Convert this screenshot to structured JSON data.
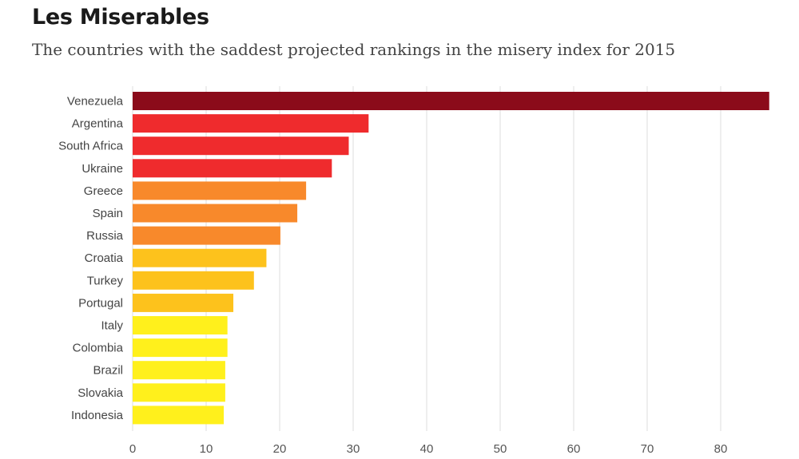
{
  "chart_data": {
    "type": "bar",
    "orientation": "horizontal",
    "title": "Les Miserables",
    "subtitle": "The countries with the saddest projected rankings in the misery index for 2015",
    "xlabel": "",
    "ylabel": "",
    "xlim": [
      0,
      87
    ],
    "xticks": [
      0,
      10,
      20,
      30,
      40,
      50,
      60,
      70,
      80
    ],
    "grid": true,
    "categories": [
      "Venezuela",
      "Argentina",
      "South Africa",
      "Ukraine",
      "Greece",
      "Spain",
      "Russia",
      "Croatia",
      "Turkey",
      "Portugal",
      "Italy",
      "Colombia",
      "Brazil",
      "Slovakia",
      "Indonesia"
    ],
    "values": [
      86.6,
      32.1,
      29.4,
      27.1,
      23.6,
      22.4,
      20.1,
      18.2,
      16.5,
      13.7,
      12.9,
      12.9,
      12.6,
      12.6,
      12.4
    ],
    "colors": [
      "#8b0b1a",
      "#ef2b2d",
      "#ef2b2d",
      "#ef2b2d",
      "#f8892b",
      "#f8892b",
      "#f8892b",
      "#fdc21c",
      "#fdc21c",
      "#fdc21c",
      "#fff01c",
      "#fff01c",
      "#fff01c",
      "#fff01c",
      "#fff01c"
    ]
  }
}
